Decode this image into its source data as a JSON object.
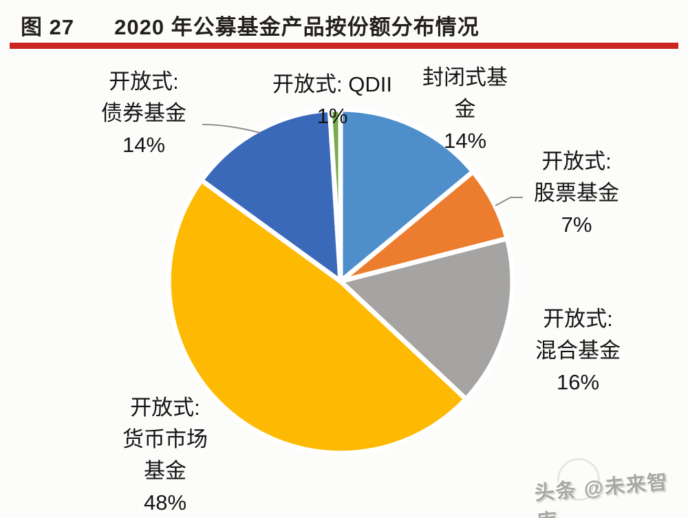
{
  "header": {
    "figure_label": "图 27",
    "title": "2020 年公募基金产品按份额分布情况",
    "rule_color": "#cb2420"
  },
  "chart_data": {
    "type": "pie",
    "title": "2020 年公募基金产品按份额分布情况",
    "unit": "%",
    "start_angle": "12-o-clock",
    "direction": "clockwise",
    "slices": [
      {
        "label": "封闭式基金",
        "value": 14,
        "color": "#4e8fcb"
      },
      {
        "label": "开放式: 股票基金",
        "value": 7,
        "color": "#ec7c2e"
      },
      {
        "label": "开放式: 混合基金",
        "value": 16,
        "color": "#a5a4a2"
      },
      {
        "label": "开放式: 货币市场基金",
        "value": 48,
        "color": "#feba02"
      },
      {
        "label": "开放式: 债券基金",
        "value": 14,
        "color": "#3b69ba"
      },
      {
        "label": "开放式: QDII",
        "value": 1,
        "color": "#74ad49"
      }
    ]
  },
  "labels": {
    "bond": "开放式:\n债券基金\n14%",
    "qdii": "开放式: QDII\n1%",
    "closed": "封闭式基\n金\n14%",
    "equity": "开放式:\n股票基金\n7%",
    "hybrid": "开放式:\n混合基金\n16%",
    "money": "开放式:\n货币市场\n基金\n48%"
  },
  "watermark": "头条 @未来智库"
}
